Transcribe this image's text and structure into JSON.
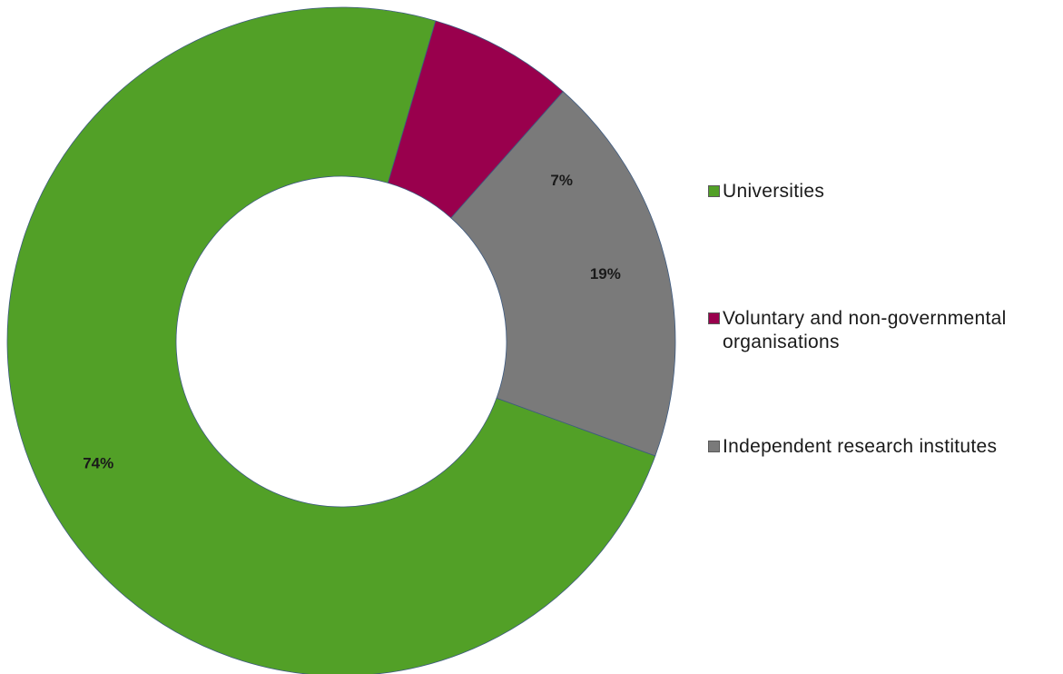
{
  "chart_data": {
    "type": "pie",
    "variant": "donut",
    "title": "",
    "legend_position": "right",
    "slices": [
      {
        "label": "Universities",
        "value": 74,
        "value_label": "74%",
        "color": "#52a027"
      },
      {
        "label": "Voluntary and non-governmental organisations",
        "value": 7,
        "value_label": "7%",
        "color": "#99004d"
      },
      {
        "label": "Independent research institutes",
        "value": 19,
        "value_label": "19%",
        "color": "#7a7a7a"
      }
    ]
  },
  "legend": {
    "items": [
      {
        "line1": "Universities",
        "line2": ""
      },
      {
        "line1": "Voluntary and non-governmental",
        "line2": "organisations"
      },
      {
        "line1": "Independent research institutes",
        "line2": ""
      }
    ]
  }
}
